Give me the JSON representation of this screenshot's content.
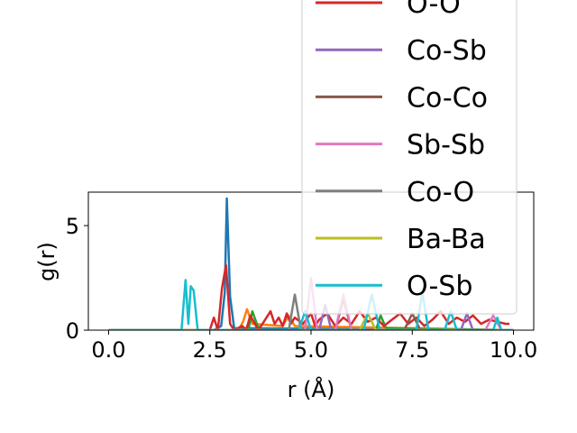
{
  "chart_data": {
    "type": "line",
    "xlabel": "r (Å)",
    "ylabel": "g(r)",
    "xlim": [
      -0.5,
      10.5
    ],
    "ylim": [
      0,
      6.6
    ],
    "xticks": [
      {
        "value": 0.0,
        "label": "0.0"
      },
      {
        "value": 2.5,
        "label": "2.5"
      },
      {
        "value": 5.0,
        "label": "5.0"
      },
      {
        "value": 7.5,
        "label": "7.5"
      },
      {
        "value": 10.0,
        "label": "10.0"
      }
    ],
    "yticks": [
      {
        "value": 0,
        "label": "0"
      },
      {
        "value": 5,
        "label": "5"
      }
    ],
    "legend_position": "upper-right",
    "series": [
      {
        "color": "#1f77b4",
        "x": [
          0,
          2.6,
          2.78,
          2.87,
          2.92,
          3.0,
          3.1,
          10
        ],
        "y": [
          0,
          0,
          0.2,
          1.8,
          6.3,
          1.6,
          0.1,
          0
        ]
      },
      {
        "color": "#ff7f0e",
        "x": [
          0,
          3.2,
          3.32,
          3.42,
          3.55,
          4.3,
          4.45,
          4.6,
          10
        ],
        "y": [
          0,
          0,
          0.4,
          1.0,
          0.3,
          0.2,
          0.7,
          0.2,
          0
        ]
      },
      {
        "color": "#2ca02c",
        "x": [
          0,
          3.45,
          3.55,
          3.68,
          3.8,
          6.6,
          6.72,
          6.85,
          10
        ],
        "y": [
          0,
          0,
          0.9,
          0.2,
          0,
          0,
          0.7,
          0.1,
          0
        ]
      },
      {
        "color": "#d62728",
        "name": "O-O",
        "x": [
          0,
          2.5,
          2.6,
          2.7,
          2.8,
          2.9,
          3.0,
          3.1,
          3.3,
          3.4,
          3.5,
          3.7,
          3.9,
          4.0,
          4.1,
          4.2,
          4.3,
          4.4,
          4.5,
          4.6,
          4.8,
          5.0,
          5.1,
          5.2,
          5.4,
          5.6,
          5.8,
          6.0,
          6.2,
          6.4,
          6.6,
          6.8,
          7.0,
          7.2,
          7.4,
          7.6,
          7.8,
          8.0,
          8.2,
          8.4,
          8.6,
          8.8,
          9.0,
          9.2,
          9.4,
          9.6,
          9.8,
          9.9
        ],
        "y": [
          0,
          0,
          0.6,
          0,
          2.0,
          3.1,
          0.3,
          0,
          0.2,
          0,
          0.7,
          0,
          0.6,
          0.9,
          0.3,
          0.6,
          0.2,
          0.8,
          0.3,
          0.6,
          0.3,
          0.8,
          0.2,
          0.5,
          0.8,
          0.2,
          0.6,
          0.3,
          0.9,
          0.4,
          0.6,
          0.2,
          0.5,
          0.8,
          0.3,
          0.6,
          0.2,
          0.5,
          0.9,
          0.3,
          0.6,
          0.4,
          0.7,
          0.3,
          0.5,
          0.4,
          0.3,
          0.3
        ]
      },
      {
        "color": "#9467bd",
        "name": "Co-Sb",
        "x": [
          0,
          5.2,
          5.35,
          5.5,
          8.7,
          8.85,
          9.0,
          10
        ],
        "y": [
          0,
          0,
          1.2,
          0,
          0,
          0.8,
          0,
          0
        ]
      },
      {
        "color": "#8c564b",
        "name": "Co-Co",
        "x": [
          0,
          5.6,
          5.8,
          6.0,
          7.3,
          7.5,
          7.7,
          10
        ],
        "y": [
          0,
          0,
          1.5,
          0,
          0,
          0.8,
          0,
          0
        ]
      },
      {
        "color": "#e377c2",
        "name": "Sb-Sb",
        "x": [
          0,
          4.85,
          5.0,
          5.15,
          5.6,
          5.8,
          6.0,
          9.3,
          9.5,
          9.7,
          10
        ],
        "y": [
          0,
          0,
          2.5,
          0,
          0,
          1.7,
          0,
          0,
          0.7,
          0,
          0
        ]
      },
      {
        "color": "#7f7f7f",
        "name": "Co-O",
        "x": [
          0,
          4.45,
          4.6,
          4.75,
          10
        ],
        "y": [
          0,
          0,
          1.7,
          0,
          0
        ]
      },
      {
        "color": "#bcbd22",
        "name": "Ba-Ba",
        "x": [
          0,
          6.2,
          6.4,
          6.6,
          10
        ],
        "y": [
          0,
          0,
          0.8,
          0,
          0
        ]
      },
      {
        "color": "#17becf",
        "name": "O-Sb",
        "x": [
          0,
          1.8,
          1.9,
          1.97,
          2.03,
          2.1,
          2.2,
          4.7,
          4.85,
          5.0,
          6.3,
          6.5,
          6.7,
          7.6,
          7.75,
          7.9,
          8.3,
          8.45,
          8.6,
          9.5,
          9.6,
          9.7,
          10
        ],
        "y": [
          0,
          0,
          2.4,
          0.3,
          2.1,
          1.9,
          0,
          0,
          0.9,
          0,
          0,
          1.7,
          0,
          0,
          1.8,
          0,
          0,
          0.9,
          0,
          0,
          0.6,
          0,
          0
        ]
      }
    ]
  }
}
